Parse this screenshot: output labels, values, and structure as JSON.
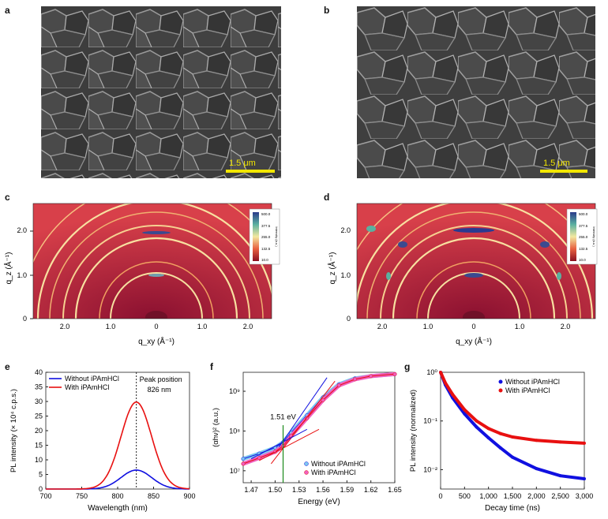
{
  "panels": {
    "a": {
      "letter": "a",
      "scale_bar": "1.5 μm"
    },
    "b": {
      "letter": "b",
      "scale_bar": "1.5 μm"
    },
    "c": {
      "letter": "c",
      "ylabel": "q_z (Å⁻¹)",
      "xlabel": "q_xy (Å⁻¹)",
      "yticks": [
        "2.0",
        "1.0",
        "0"
      ],
      "xticks": [
        "2.0",
        "1.0",
        "0",
        "1.0",
        "2.0"
      ],
      "colorbar_ticks": [
        "500.0",
        "377.5",
        "255.0",
        "132.5",
        "10.0"
      ],
      "colorbar_label": "Intensity (a.u.)"
    },
    "d": {
      "letter": "d",
      "ylabel": "q_z (Å⁻¹)",
      "xlabel": "q_xy (Å⁻¹)",
      "yticks": [
        "2.0",
        "1.0",
        "0"
      ],
      "xticks": [
        "2.0",
        "1.0",
        "0",
        "1.0",
        "2.0"
      ],
      "colorbar_ticks": [
        "500.0",
        "377.5",
        "255.0",
        "132.5",
        "10.0"
      ],
      "colorbar_label": "Intensity (a.u.)"
    },
    "e": {
      "letter": "e"
    },
    "f": {
      "letter": "f"
    },
    "g": {
      "letter": "g"
    }
  },
  "colors": {
    "without": "#1010e0",
    "with": "#e81010",
    "without_light": "#7ec8f0",
    "with_light": "#f060c0",
    "scale_bar": "#f2e600"
  },
  "chart_data": [
    {
      "panel": "e",
      "type": "line",
      "xlabel": "Wavelength (nm)",
      "ylabel": "PL intensity (× 10⁴ c.p.s.)",
      "xlim": [
        700,
        900
      ],
      "ylim": [
        0,
        40
      ],
      "xticks": [
        700,
        750,
        800,
        850,
        900
      ],
      "yticks": [
        0,
        5,
        10,
        15,
        20,
        25,
        30,
        35,
        40
      ],
      "legend": "top-left",
      "annotations": [
        "Peak position",
        "826 nm"
      ],
      "peak_wavelength": 826,
      "series": [
        {
          "name": "Without iPAmHCl",
          "peak_x": 826,
          "peak_y": 6.5,
          "fwhm": 50
        },
        {
          "name": "With iPAmHCl",
          "peak_x": 826,
          "peak_y": 29.8,
          "fwhm": 50
        }
      ]
    },
    {
      "panel": "f",
      "type": "scatter",
      "xlabel": "Energy (eV)",
      "ylabel": "(αhν)² (a.u.)",
      "xlim": [
        1.46,
        1.65
      ],
      "ylim": [
        5000000,
        3000000000
      ],
      "yscale": "log",
      "xticks": [
        "1.47",
        "1.50",
        "1.53",
        "1.56",
        "1.59",
        "1.62",
        "1.65"
      ],
      "yticks": [
        "10⁷",
        "10⁸",
        "10⁹"
      ],
      "legend": "bottom-right",
      "annotations": [
        "1.51 eV"
      ],
      "bandgap_eV": 1.51,
      "series": [
        {
          "name": "Without iPAmHCl",
          "x": [
            1.46,
            1.48,
            1.5,
            1.51,
            1.52,
            1.54,
            1.56,
            1.58,
            1.6,
            1.62,
            1.65
          ],
          "y": [
            20000000,
            27000000,
            38000000,
            52000000,
            90000000,
            250000000,
            700000000,
            1500000000,
            2100000000,
            2400000000,
            2700000000
          ]
        },
        {
          "name": "With iPAmHCl",
          "x": [
            1.46,
            1.48,
            1.5,
            1.51,
            1.52,
            1.54,
            1.56,
            1.58,
            1.6,
            1.62,
            1.65
          ],
          "y": [
            15000000,
            21000000,
            30000000,
            42000000,
            75000000,
            210000000,
            600000000,
            1400000000,
            2000000000,
            2400000000,
            2700000000
          ]
        }
      ]
    },
    {
      "panel": "g",
      "type": "scatter",
      "xlabel": "Decay time (ns)",
      "ylabel": "PL intensity (normalized)",
      "xlim": [
        0,
        3000
      ],
      "ylim": [
        0.004,
        1
      ],
      "yscale": "log",
      "xticks": [
        "0",
        "500",
        "1,000",
        "1,500",
        "2,000",
        "2,500",
        "3,000"
      ],
      "yticks": [
        "10⁻²",
        "10⁻¹",
        "10⁰"
      ],
      "legend": "top-right",
      "series": [
        {
          "name": "Without iPAmHCl",
          "x": [
            0,
            100,
            250,
            500,
            750,
            1000,
            1250,
            1500,
            2000,
            2500,
            3000
          ],
          "y": [
            1.0,
            0.55,
            0.3,
            0.14,
            0.075,
            0.045,
            0.028,
            0.018,
            0.0105,
            0.0075,
            0.0065
          ]
        },
        {
          "name": "With iPAmHCl",
          "x": [
            0,
            100,
            250,
            500,
            750,
            1000,
            1250,
            1500,
            2000,
            2500,
            3000
          ],
          "y": [
            1.0,
            0.6,
            0.35,
            0.17,
            0.1,
            0.07,
            0.055,
            0.047,
            0.04,
            0.037,
            0.035
          ]
        }
      ]
    }
  ]
}
